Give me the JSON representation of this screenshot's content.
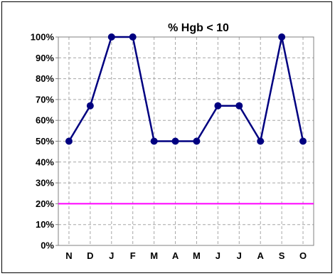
{
  "chart_data": {
    "type": "line",
    "title": "% Hgb < 10",
    "categories": [
      "N",
      "D",
      "J",
      "F",
      "M",
      "A",
      "M",
      "J",
      "J",
      "A",
      "S",
      "O"
    ],
    "series": [
      {
        "values": [
          50,
          67,
          100,
          100,
          50,
          50,
          50,
          67,
          67,
          50,
          100,
          50
        ],
        "color": "#000080"
      }
    ],
    "reference_line": {
      "value": 20,
      "color": "#ff00ff"
    },
    "y_ticks": [
      "0%",
      "10%",
      "20%",
      "30%",
      "40%",
      "50%",
      "60%",
      "70%",
      "80%",
      "90%",
      "100%"
    ],
    "ylim": [
      0,
      100
    ],
    "grid": true,
    "legend": "none"
  }
}
